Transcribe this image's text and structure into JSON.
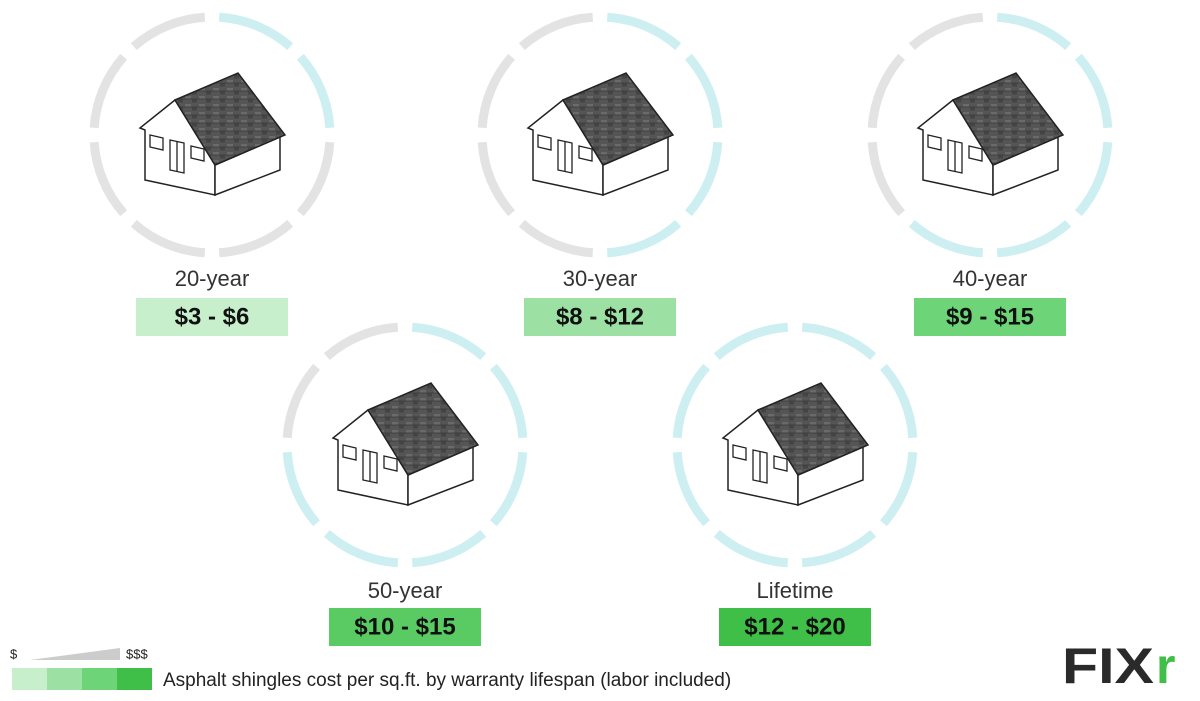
{
  "items": [
    {
      "label": "20-year",
      "price": "$3 - $6"
    },
    {
      "label": "30-year",
      "price": "$8 - $12"
    },
    {
      "label": "40-year",
      "price": "$9 - $15"
    },
    {
      "label": "50-year",
      "price": "$10 - $15"
    },
    {
      "label": "Lifetime",
      "price": "$12 - $20"
    }
  ],
  "legend": {
    "low": "$",
    "high": "$$$",
    "caption": "Asphalt shingles cost per sq.ft. by warranty lifespan (labor included)"
  },
  "logo": {
    "text": "FIX",
    "accent": "r"
  }
}
